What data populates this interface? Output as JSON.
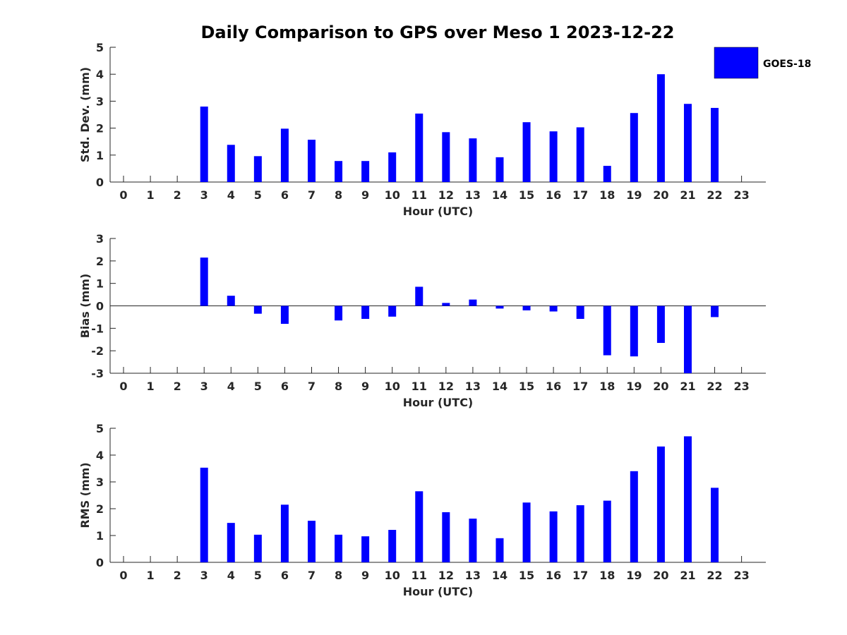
{
  "chart_data": {
    "type": "bar",
    "title": "Daily Comparison to GPS over Meso 1 2023-12-22",
    "legend": {
      "placement": "top-right",
      "entries": [
        "GOES-18"
      ]
    },
    "series_color": "#0000ff",
    "x": [
      0,
      1,
      2,
      3,
      4,
      5,
      6,
      7,
      8,
      9,
      10,
      11,
      12,
      13,
      14,
      15,
      16,
      17,
      18,
      19,
      20,
      21,
      22,
      23
    ],
    "panels": [
      {
        "name": "std",
        "xlabel": "Hour (UTC)",
        "ylabel": "Std. Dev. (mm)",
        "ylim": [
          0,
          5
        ],
        "yticks": [
          0,
          1,
          2,
          3,
          4,
          5
        ],
        "values": [
          null,
          null,
          null,
          2.8,
          1.38,
          0.96,
          1.98,
          1.57,
          0.78,
          0.78,
          1.1,
          2.54,
          1.85,
          1.62,
          0.92,
          2.22,
          1.88,
          2.03,
          0.6,
          2.56,
          4.0,
          2.9,
          2.75,
          null
        ]
      },
      {
        "name": "bias",
        "xlabel": "Hour (UTC)",
        "ylabel": "Bias (mm)",
        "ylim": [
          -3,
          3
        ],
        "yticks": [
          -3,
          -2,
          -1,
          0,
          1,
          2,
          3
        ],
        "values": [
          null,
          null,
          null,
          2.15,
          0.45,
          -0.35,
          -0.8,
          null,
          -0.65,
          -0.58,
          -0.48,
          0.85,
          0.13,
          0.28,
          -0.12,
          -0.2,
          -0.25,
          -0.58,
          -2.2,
          -2.25,
          -1.65,
          -3.0,
          -0.5,
          null
        ]
      },
      {
        "name": "rms",
        "xlabel": "Hour (UTC)",
        "ylabel": "RMS (mm)",
        "ylim": [
          0,
          5
        ],
        "yticks": [
          0,
          1,
          2,
          3,
          4,
          5
        ],
        "values": [
          null,
          null,
          null,
          3.53,
          1.47,
          1.03,
          2.15,
          1.55,
          1.03,
          0.97,
          1.21,
          2.65,
          1.87,
          1.63,
          0.9,
          2.23,
          1.9,
          2.13,
          2.3,
          3.4,
          4.32,
          4.7,
          2.78,
          null
        ]
      }
    ]
  }
}
